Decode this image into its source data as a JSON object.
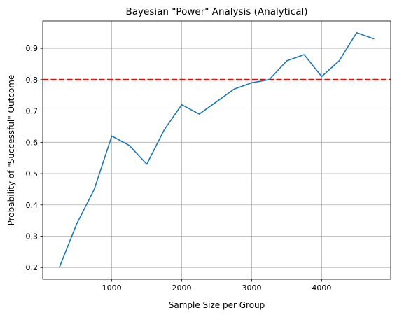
{
  "chart_data": {
    "type": "line",
    "title": "Bayesian \"Power\" Analysis (Analytical)",
    "xlabel": "Sample Size per Group",
    "ylabel": "Probability of \"Successful\" Outcome",
    "xlim": [
      13,
      4987
    ],
    "ylim": [
      0.1625,
      0.9875
    ],
    "xticks": [
      1000,
      2000,
      3000,
      4000
    ],
    "yticks": [
      0.2,
      0.3,
      0.4,
      0.5,
      0.6,
      0.7,
      0.8,
      0.9
    ],
    "xtick_labels": [
      "1000",
      "2000",
      "3000",
      "4000"
    ],
    "ytick_labels": [
      "0.2",
      "0.3",
      "0.4",
      "0.5",
      "0.6",
      "0.7",
      "0.8",
      "0.9"
    ],
    "grid": true,
    "series": [
      {
        "x": [
          250,
          500,
          750,
          1000,
          1250,
          1500,
          1750,
          2000,
          2250,
          2500,
          2750,
          3000,
          3250,
          3500,
          3750,
          4000,
          4250,
          4500,
          4750
        ],
        "values": [
          0.2,
          0.34,
          0.45,
          0.62,
          0.59,
          0.53,
          0.64,
          0.72,
          0.69,
          0.73,
          0.77,
          0.79,
          0.8,
          0.86,
          0.88,
          0.81,
          0.86,
          0.95,
          0.93
        ],
        "color": "#1f77b4"
      }
    ],
    "reference_line": {
      "y": 0.8,
      "color": "#ff0000",
      "style": "dashed"
    }
  }
}
